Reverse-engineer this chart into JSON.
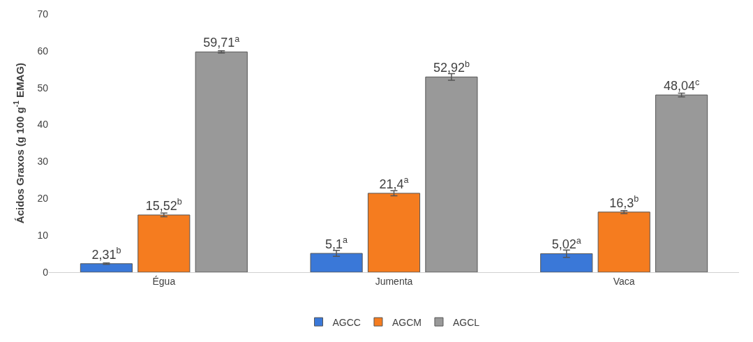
{
  "chart_data": {
    "type": "bar",
    "ylabel": "Ácidos Graxos (g 100 g$^{-1}$ EMAG)",
    "categories": [
      "Égua",
      "Jumenta",
      "Vaca"
    ],
    "ylim": [
      0,
      70
    ],
    "yticks": [
      0,
      10,
      20,
      30,
      40,
      50,
      60,
      70
    ],
    "legend": "bottom",
    "series": [
      {
        "name": "AGCC",
        "color": "#3a78d8",
        "values": [
          2.31,
          5.1,
          5.02
        ],
        "errors": [
          0.2,
          0.8,
          1.0
        ],
        "value_labels": [
          "2,31$^{b}$",
          "5,1$^{a}$",
          "5,02$^{a}$"
        ]
      },
      {
        "name": "AGCM",
        "color": "#f57c1f",
        "values": [
          15.52,
          21.4,
          16.3
        ],
        "errors": [
          0.5,
          0.7,
          0.4
        ],
        "value_labels": [
          "15,52$^{b}$",
          "21,4$^{a}$",
          "16,3$^{b}$"
        ]
      },
      {
        "name": "AGCL",
        "color": "#999999",
        "values": [
          59.71,
          52.92,
          48.04
        ],
        "errors": [
          0.3,
          0.9,
          0.5
        ],
        "value_labels": [
          "59,71$^{a}$",
          "52,92$^{b}$",
          "48,04$^{c}$"
        ]
      }
    ]
  }
}
